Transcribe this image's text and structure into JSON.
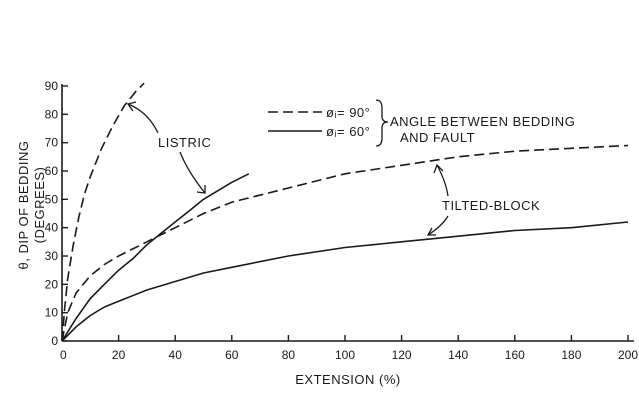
{
  "chart_data": {
    "type": "line",
    "title": "",
    "xlabel": "EXTENSION (%)",
    "ylabel": "θ,  DIP OF BEDDING (DEGREES)",
    "ylabel_line1": "θ,  DIP OF BEDDING",
    "ylabel_line2": "(DEGREES)",
    "xlim": [
      0,
      200
    ],
    "ylim": [
      0,
      90
    ],
    "x_ticks": [
      0,
      20,
      40,
      60,
      80,
      100,
      120,
      140,
      160,
      180,
      200
    ],
    "y_ticks": [
      0,
      10,
      20,
      30,
      40,
      50,
      60,
      70,
      80,
      90
    ],
    "grid": false,
    "legend": {
      "placement": "top-right",
      "entries": [
        {
          "symbol": "dashed",
          "label": "øᵢ= 90°"
        },
        {
          "symbol": "solid",
          "label": "øᵢ= 60°"
        }
      ],
      "bracket_label_line1": "ANGLE  BETWEEN  BEDDING",
      "bracket_label_line2": "AND  FAULT"
    },
    "annotations": {
      "listric": "LISTRIC",
      "tilted_block": "TILTED-BLOCK"
    },
    "series": [
      {
        "model": "listric",
        "line_style": "dashed",
        "x": [
          0,
          1,
          2,
          4,
          6,
          8,
          10,
          14,
          18,
          22,
          26,
          29
        ],
        "y": [
          0,
          12,
          22,
          34,
          44,
          52,
          58,
          68,
          76,
          83,
          88,
          91
        ]
      },
      {
        "model": "listric",
        "line_style": "solid",
        "x": [
          0,
          5,
          10,
          15,
          20,
          25,
          30,
          35,
          40,
          45,
          50,
          55,
          60,
          66
        ],
        "y": [
          0,
          8,
          15,
          20,
          25,
          29,
          34,
          38,
          42,
          46,
          50,
          53,
          56,
          59
        ]
      },
      {
        "model": "tilted-block",
        "line_style": "dashed",
        "x": [
          0,
          2,
          5,
          10,
          15,
          20,
          30,
          40,
          50,
          60,
          80,
          100,
          120,
          140,
          160,
          180,
          200
        ],
        "y": [
          0,
          10,
          17,
          23,
          27,
          30,
          35,
          40,
          45,
          49,
          54,
          59,
          62,
          65,
          67,
          68,
          69
        ]
      },
      {
        "model": "tilted-block",
        "line_style": "solid",
        "x": [
          0,
          5,
          10,
          15,
          20,
          30,
          40,
          50,
          60,
          80,
          100,
          120,
          140,
          160,
          180,
          200
        ],
        "y": [
          0,
          5,
          9,
          12,
          14,
          18,
          21,
          24,
          26,
          30,
          33,
          35,
          37,
          39,
          40,
          42
        ]
      }
    ]
  }
}
